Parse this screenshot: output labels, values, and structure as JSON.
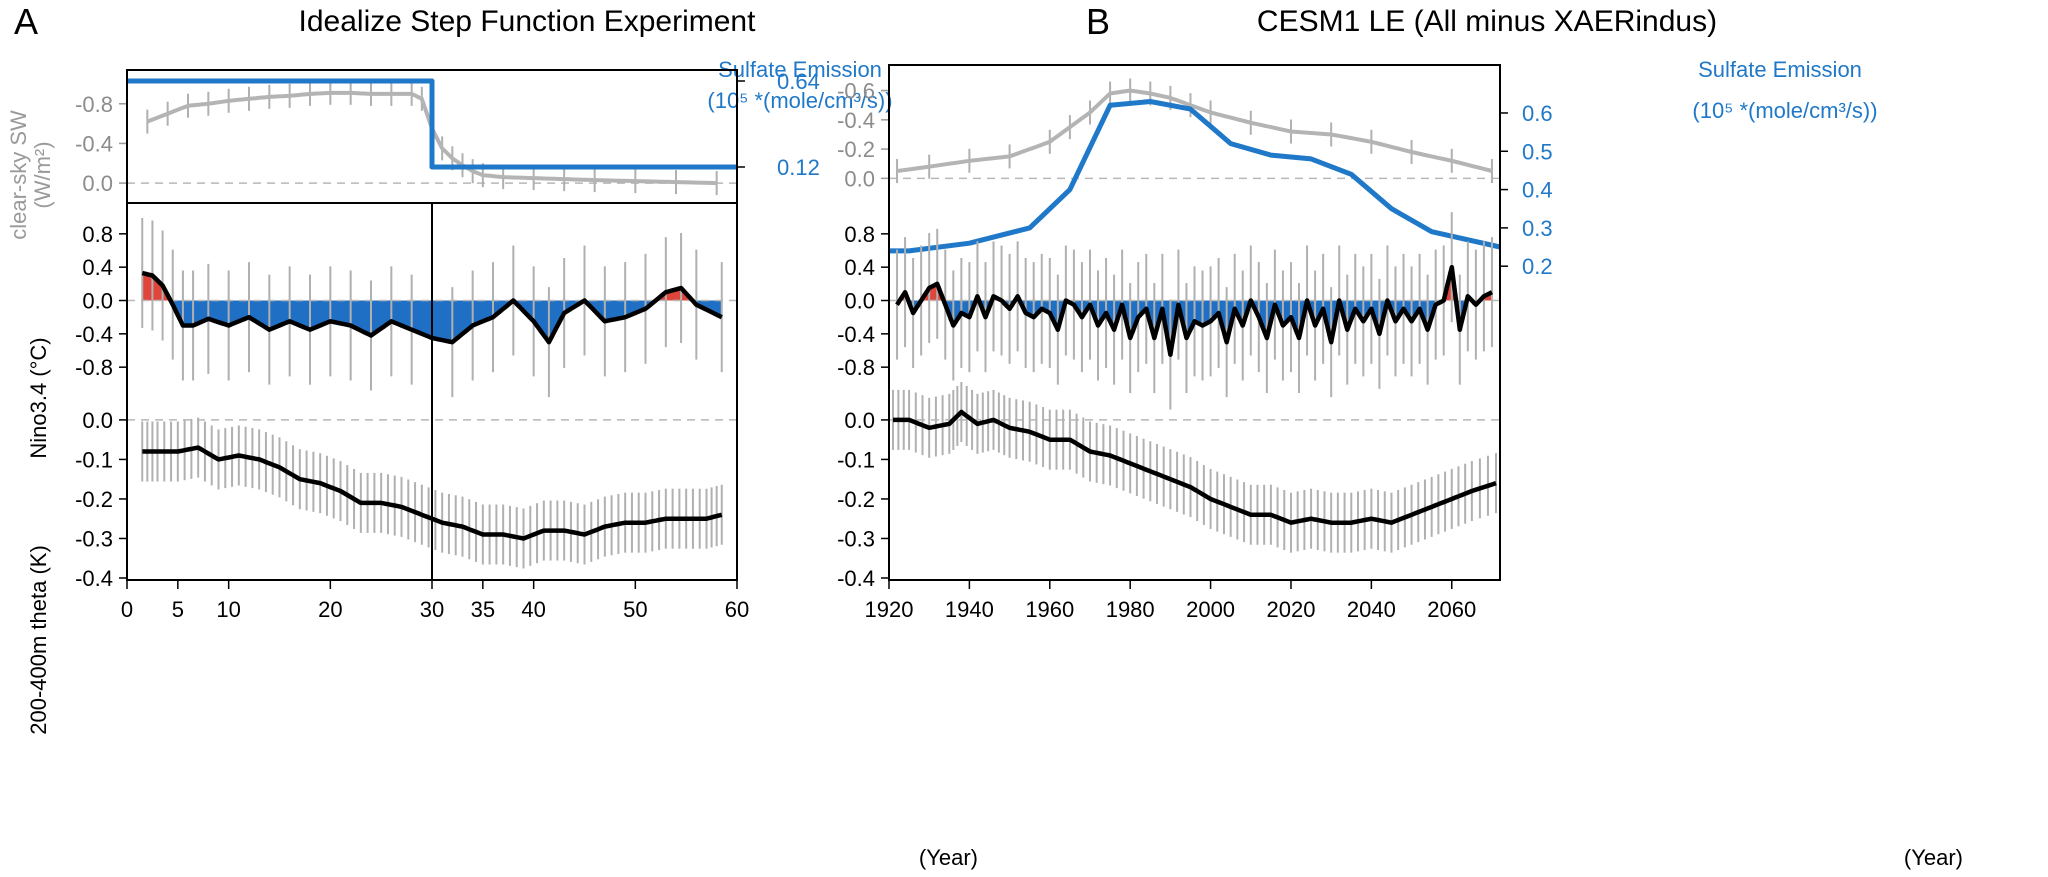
{
  "colors": {
    "sulfate": "#1f78c8",
    "sw": "#b4b4b4",
    "pos": "#e0453c",
    "neg": "#1f6fc4",
    "line": "#000000",
    "errbar": "#b0b0b0"
  },
  "chart_data": [
    {
      "panel": "A",
      "title": "Idealize Step Function Experiment",
      "type": "line",
      "xlabel": "(Year)",
      "xlim": [
        0,
        60
      ],
      "xticks": [
        0,
        5,
        10,
        20,
        30,
        35,
        40,
        50,
        60
      ],
      "top": {
        "ylabel": "clear-sky SW",
        "yunit": "(W/m²)",
        "ylim": [
          0.1,
          -1.06
        ],
        "yticks": [
          -0.8,
          -0.4,
          0.0
        ],
        "ytick_labels": [
          "-0.8",
          "-0.4",
          "0.0"
        ],
        "series": [
          {
            "key": "sw",
            "x": [
              2,
              4,
              6,
              8,
              10,
              12,
              14,
              16,
              18,
              20,
              22,
              24,
              26,
              28,
              29,
              30,
              31,
              32,
              33,
              34,
              35,
              37,
              40,
              43,
              46,
              50,
              54,
              58
            ],
            "values": [
              -0.62,
              -0.7,
              -0.78,
              -0.8,
              -0.83,
              -0.85,
              -0.87,
              -0.88,
              -0.9,
              -0.91,
              -0.91,
              -0.9,
              -0.9,
              -0.9,
              -0.85,
              -0.55,
              -0.35,
              -0.25,
              -0.18,
              -0.12,
              -0.08,
              -0.06,
              -0.05,
              -0.04,
              -0.03,
              -0.02,
              -0.01,
              0.0
            ]
          }
        ],
        "sulfate": {
          "name": "Sulfate Emission",
          "unit": "(10⁵ *(mole/cm³/s))",
          "x": [
            0,
            30,
            30,
            60
          ],
          "values": [
            0.64,
            0.64,
            0.12,
            0.12
          ],
          "rtick_labels": [
            "0.64",
            "0.12"
          ]
        }
      },
      "nino": {
        "ylabel": "Nino3.4 (°C)",
        "ylim": [
          -1.05,
          1.05
        ],
        "yticks": [
          0.8,
          0.4,
          0.0,
          -0.4,
          -0.8
        ],
        "ytick_labels": [
          "0.8",
          "0.4",
          "0.0",
          "-0.4",
          "-0.8"
        ],
        "x": [
          1.5,
          2.5,
          3.5,
          4.5,
          5.5,
          6.5,
          8,
          10,
          12,
          14,
          16,
          18,
          20,
          22,
          24,
          26,
          28,
          30,
          32,
          34,
          36,
          38,
          40,
          41.5,
          43,
          45,
          47,
          49,
          51,
          53,
          54.5,
          56,
          58.5
        ],
        "values": [
          0.33,
          0.3,
          0.18,
          -0.05,
          -0.3,
          -0.3,
          -0.22,
          -0.3,
          -0.2,
          -0.35,
          -0.25,
          -0.35,
          -0.25,
          -0.3,
          -0.42,
          -0.25,
          -0.35,
          -0.45,
          -0.5,
          -0.3,
          -0.2,
          0.0,
          -0.25,
          -0.5,
          -0.15,
          0.0,
          -0.25,
          -0.2,
          -0.1,
          0.1,
          0.15,
          -0.05,
          -0.2
        ]
      },
      "theta": {
        "ylabel": "200-400m theta (K)",
        "ylim": [
          -0.4,
          0.02
        ],
        "yticks": [
          0.0,
          -0.1,
          -0.2,
          -0.3,
          -0.4
        ],
        "ytick_labels": [
          "0.0",
          "-0.1",
          "-0.2",
          "-0.3",
          "-0.4"
        ],
        "x": [
          1.5,
          3,
          5,
          7,
          9,
          11,
          13,
          15,
          17,
          19,
          21,
          23,
          25,
          27,
          29,
          31,
          33,
          35,
          37,
          39,
          41,
          43,
          45,
          47,
          49,
          51,
          53,
          55,
          57,
          58.5
        ],
        "values": [
          -0.08,
          -0.08,
          -0.08,
          -0.07,
          -0.1,
          -0.09,
          -0.1,
          -0.12,
          -0.15,
          -0.16,
          -0.18,
          -0.21,
          -0.21,
          -0.22,
          -0.24,
          -0.26,
          -0.27,
          -0.29,
          -0.29,
          -0.3,
          -0.28,
          -0.28,
          -0.29,
          -0.27,
          -0.26,
          -0.26,
          -0.25,
          -0.25,
          -0.25,
          -0.24
        ]
      }
    },
    {
      "panel": "B",
      "title": "CESM1 LE (All minus XAERindus)",
      "type": "line",
      "xlabel": "(Year)",
      "xlim": [
        1920,
        2072
      ],
      "xticks": [
        1920,
        1940,
        1960,
        1980,
        2000,
        2020,
        2040,
        2060
      ],
      "top": {
        "ylim": [
          0.1,
          -0.72
        ],
        "yticks": [
          -0.6,
          -0.4,
          -0.2,
          0.0
        ],
        "ytick_labels": [
          "-0.6",
          "-0.4",
          "-0.2",
          "0.0"
        ],
        "series": [
          {
            "key": "sw",
            "x": [
              1922,
              1930,
              1940,
              1950,
              1960,
              1965,
              1970,
              1975,
              1980,
              1985,
              1990,
              1995,
              2000,
              2010,
              2020,
              2030,
              2040,
              2050,
              2060,
              2070
            ],
            "values": [
              -0.05,
              -0.08,
              -0.12,
              -0.15,
              -0.25,
              -0.35,
              -0.45,
              -0.58,
              -0.6,
              -0.58,
              -0.55,
              -0.5,
              -0.45,
              -0.38,
              -0.32,
              -0.3,
              -0.25,
              -0.18,
              -0.12,
              -0.05
            ]
          }
        ],
        "sulfate": {
          "name": "Sulfate Emission",
          "unit": "(10⁵ *(mole/cm³/s))",
          "x": [
            1920,
            1925,
            1940,
            1955,
            1965,
            1975,
            1985,
            1995,
            2005,
            2015,
            2025,
            2035,
            2045,
            2055,
            2072
          ],
          "values": [
            0.24,
            0.24,
            0.26,
            0.3,
            0.4,
            0.62,
            0.63,
            0.61,
            0.52,
            0.49,
            0.48,
            0.44,
            0.35,
            0.29,
            0.25
          ],
          "ylim": [
            0.13,
            0.72
          ],
          "rticks": [
            0.6,
            0.5,
            0.4,
            0.3,
            0.2
          ],
          "rtick_labels": [
            "0.6",
            "0.5",
            "0.4",
            "0.3",
            "0.2"
          ]
        }
      },
      "nino": {
        "ylim": [
          -1.05,
          1.05
        ],
        "yticks": [
          0.8,
          0.4,
          0.0,
          -0.4,
          -0.8
        ],
        "ytick_labels": [
          "0.8",
          "0.4",
          "0.0",
          "-0.4",
          "-0.8"
        ],
        "x": [
          1922,
          1924,
          1926,
          1928,
          1930,
          1932,
          1934,
          1936,
          1938,
          1940,
          1942,
          1944,
          1946,
          1948,
          1950,
          1952,
          1954,
          1956,
          1958,
          1960,
          1962,
          1964,
          1966,
          1968,
          1970,
          1972,
          1974,
          1976,
          1978,
          1980,
          1982,
          1984,
          1986,
          1988,
          1990,
          1992,
          1994,
          1996,
          1998,
          2000,
          2002,
          2004,
          2006,
          2008,
          2010,
          2012,
          2014,
          2016,
          2018,
          2020,
          2022,
          2024,
          2026,
          2028,
          2030,
          2032,
          2034,
          2036,
          2038,
          2040,
          2042,
          2044,
          2046,
          2048,
          2050,
          2052,
          2054,
          2056,
          2058,
          2060,
          2062,
          2064,
          2066,
          2068,
          2070
        ],
        "values": [
          -0.05,
          0.1,
          -0.15,
          0.0,
          0.15,
          0.2,
          -0.05,
          -0.3,
          -0.15,
          -0.2,
          0.05,
          -0.2,
          0.05,
          0.0,
          -0.1,
          0.05,
          -0.15,
          -0.2,
          -0.1,
          -0.15,
          -0.35,
          0.0,
          -0.05,
          -0.2,
          -0.05,
          -0.3,
          -0.15,
          -0.35,
          -0.05,
          -0.45,
          -0.2,
          -0.1,
          -0.45,
          -0.1,
          -0.65,
          -0.05,
          -0.45,
          -0.25,
          -0.3,
          -0.25,
          -0.15,
          -0.5,
          -0.1,
          -0.3,
          0.0,
          -0.2,
          -0.45,
          -0.05,
          -0.3,
          -0.2,
          -0.45,
          0.0,
          -0.3,
          -0.1,
          -0.5,
          0.0,
          -0.35,
          -0.1,
          -0.25,
          -0.1,
          -0.4,
          0.0,
          -0.25,
          -0.1,
          -0.25,
          -0.1,
          -0.35,
          -0.05,
          0.0,
          0.4,
          -0.35,
          0.05,
          -0.05,
          0.05,
          0.1
        ]
      },
      "theta": {
        "ylim": [
          -0.4,
          0.02
        ],
        "yticks": [
          0.0,
          -0.1,
          -0.2,
          -0.3,
          -0.4
        ],
        "ytick_labels": [
          "0.0",
          "-0.1",
          "-0.2",
          "-0.3",
          "-0.4"
        ],
        "x": [
          1921,
          1925,
          1930,
          1935,
          1938,
          1942,
          1946,
          1950,
          1955,
          1960,
          1965,
          1970,
          1975,
          1980,
          1985,
          1990,
          1995,
          2000,
          2005,
          2010,
          2015,
          2020,
          2025,
          2030,
          2035,
          2040,
          2045,
          2050,
          2055,
          2060,
          2065,
          2071
        ],
        "values": [
          0.0,
          0.0,
          -0.02,
          -0.01,
          0.02,
          -0.01,
          0.0,
          -0.02,
          -0.03,
          -0.05,
          -0.05,
          -0.08,
          -0.09,
          -0.11,
          -0.13,
          -0.15,
          -0.17,
          -0.2,
          -0.22,
          -0.24,
          -0.24,
          -0.26,
          -0.25,
          -0.26,
          -0.26,
          -0.25,
          -0.26,
          -0.24,
          -0.22,
          -0.2,
          -0.18,
          -0.16
        ]
      }
    }
  ]
}
